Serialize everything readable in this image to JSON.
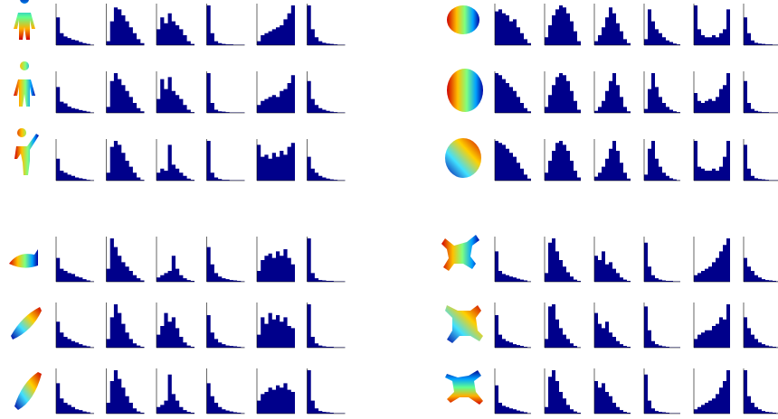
{
  "figure": {
    "ylim": [
      0,
      100
    ],
    "color": "#00008b",
    "groups": [
      {
        "rows": [
          [
            [
              70,
              30,
              22,
              18,
              14,
              12,
              8,
              5,
              3,
              1
            ],
            [
              10,
              60,
              95,
              90,
              75,
              60,
              45,
              30,
              15,
              5
            ],
            [
              40,
              70,
              55,
              80,
              60,
              50,
              40,
              25,
              10,
              3
            ],
            [
              100,
              30,
              10,
              5,
              3,
              2,
              2,
              1,
              1,
              1
            ],
            [
              10,
              25,
              30,
              35,
              40,
              45,
              50,
              65,
              80,
              100
            ],
            [
              100,
              40,
              20,
              10,
              6,
              4,
              3,
              2,
              1,
              1
            ]
          ],
          [
            [
              65,
              28,
              24,
              16,
              12,
              10,
              7,
              5,
              3,
              1
            ],
            [
              15,
              80,
              100,
              85,
              70,
              55,
              40,
              25,
              12,
              4
            ],
            [
              35,
              85,
              60,
              90,
              55,
              45,
              35,
              20,
              8,
              2
            ],
            [
              100,
              25,
              8,
              4,
              3,
              2,
              1,
              1,
              1,
              1
            ],
            [
              20,
              30,
              35,
              40,
              45,
              40,
              55,
              60,
              75,
              95
            ],
            [
              80,
              35,
              20,
              12,
              8,
              5,
              3,
              2,
              1,
              1
            ]
          ],
          [
            [
              55,
              25,
              20,
              15,
              12,
              8,
              6,
              4,
              2,
              1
            ],
            [
              20,
              85,
              100,
              90,
              70,
              50,
              35,
              20,
              8,
              2
            ],
            [
              20,
              30,
              25,
              90,
              40,
              30,
              20,
              12,
              5,
              2
            ],
            [
              100,
              20,
              8,
              4,
              2,
              2,
              1,
              1,
              1,
              1
            ],
            [
              90,
              60,
              65,
              55,
              70,
              60,
              75,
              65,
              85,
              95
            ],
            [
              60,
              30,
              20,
              12,
              8,
              5,
              3,
              2,
              1,
              1
            ]
          ]
        ]
      },
      {
        "rows": [
          [
            [
              85,
              90,
              80,
              75,
              60,
              65,
              45,
              30,
              15,
              5
            ],
            [
              20,
              50,
              75,
              90,
              100,
              95,
              80,
              60,
              35,
              10
            ],
            [
              10,
              25,
              45,
              70,
              95,
              80,
              55,
              35,
              15,
              5
            ],
            [
              15,
              90,
              60,
              40,
              30,
              20,
              12,
              8,
              4,
              2
            ],
            [
              100,
              40,
              25,
              20,
              20,
              25,
              20,
              30,
              40,
              90
            ],
            [
              70,
              30,
              12,
              6,
              4,
              3,
              2,
              2,
              1,
              1
            ]
          ],
          [
            [
              100,
              95,
              85,
              75,
              65,
              55,
              40,
              25,
              12,
              4
            ],
            [
              15,
              45,
              70,
              90,
              100,
              95,
              80,
              55,
              30,
              8
            ],
            [
              5,
              15,
              30,
              55,
              80,
              100,
              70,
              40,
              15,
              4
            ],
            [
              10,
              60,
              100,
              65,
              40,
              25,
              15,
              8,
              4,
              2
            ],
            [
              50,
              30,
              25,
              30,
              35,
              30,
              40,
              60,
              70,
              100
            ],
            [
              80,
              25,
              10,
              5,
              3,
              2,
              2,
              1,
              1,
              1
            ]
          ],
          [
            [
              100,
              95,
              90,
              80,
              70,
              60,
              45,
              30,
              15,
              5
            ],
            [
              20,
              50,
              75,
              95,
              100,
              90,
              75,
              50,
              25,
              8
            ],
            [
              10,
              20,
              35,
              55,
              80,
              100,
              75,
              45,
              20,
              5
            ],
            [
              15,
              80,
              100,
              55,
              35,
              20,
              12,
              6,
              3,
              1
            ],
            [
              100,
              35,
              30,
              25,
              25,
              30,
              25,
              35,
              60,
              100
            ],
            [
              90,
              30,
              12,
              6,
              4,
              3,
              2,
              1,
              1,
              1
            ]
          ]
        ]
      },
      {
        "rows": [
          [
            [
              55,
              30,
              25,
              20,
              18,
              12,
              10,
              6,
              3,
              1
            ],
            [
              30,
              100,
              80,
              60,
              45,
              35,
              25,
              15,
              8,
              3
            ],
            [
              10,
              15,
              20,
              25,
              60,
              30,
              15,
              8,
              4,
              2
            ],
            [
              80,
              40,
              20,
              12,
              8,
              6,
              4,
              3,
              2,
              1
            ],
            [
              25,
              50,
              60,
              65,
              55,
              70,
              60,
              75,
              55,
              40
            ],
            [
              100,
              20,
              8,
              4,
              3,
              2,
              2,
              1,
              1,
              1
            ]
          ],
          [
            [
              60,
              35,
              25,
              20,
              15,
              12,
              8,
              5,
              3,
              1
            ],
            [
              20,
              70,
              100,
              80,
              55,
              35,
              20,
              10,
              5,
              2
            ],
            [
              30,
              50,
              80,
              60,
              70,
              45,
              25,
              12,
              5,
              2
            ],
            [
              75,
              35,
              20,
              12,
              8,
              5,
              4,
              3,
              2,
              1
            ],
            [
              30,
              70,
              55,
              80,
              65,
              75,
              60,
              70,
              50,
              45
            ],
            [
              100,
              25,
              10,
              5,
              3,
              2,
              2,
              1,
              1,
              1
            ]
          ],
          [
            [
              70,
              35,
              25,
              20,
              15,
              10,
              8,
              5,
              3,
              1
            ],
            [
              25,
              75,
              100,
              80,
              60,
              40,
              25,
              12,
              5,
              2
            ],
            [
              15,
              20,
              30,
              90,
              45,
              30,
              15,
              8,
              4,
              2
            ],
            [
              70,
              40,
              25,
              15,
              10,
              7,
              5,
              3,
              2,
              1
            ],
            [
              30,
              45,
              50,
              60,
              55,
              65,
              60,
              70,
              55,
              50
            ],
            [
              100,
              30,
              12,
              6,
              4,
              3,
              2,
              1,
              1,
              1
            ]
          ]
        ]
      },
      {
        "rows": [
          [
            [
              70,
              25,
              18,
              15,
              12,
              10,
              7,
              5,
              3,
              1
            ],
            [
              20,
              90,
              100,
              70,
              50,
              35,
              22,
              12,
              5,
              2
            ],
            [
              60,
              50,
              70,
              40,
              45,
              30,
              20,
              10,
              5,
              2
            ],
            [
              90,
              35,
              15,
              8,
              5,
              3,
              2,
              2,
              1,
              1
            ],
            [
              15,
              20,
              25,
              30,
              35,
              45,
              55,
              70,
              85,
              100
            ],
            [
              55,
              35,
              25,
              15,
              10,
              6,
              4,
              3,
              2,
              1
            ]
          ],
          [
            [
              75,
              30,
              20,
              15,
              12,
              8,
              6,
              4,
              2,
              1
            ],
            [
              20,
              95,
              100,
              65,
              45,
              30,
              20,
              10,
              4,
              1
            ],
            [
              80,
              55,
              45,
              60,
              35,
              25,
              15,
              8,
              4,
              2
            ],
            [
              95,
              40,
              15,
              8,
              5,
              3,
              2,
              1,
              1,
              1
            ],
            [
              20,
              30,
              35,
              40,
              40,
              50,
              55,
              70,
              65,
              100
            ],
            [
              70,
              45,
              30,
              20,
              12,
              8,
              5,
              3,
              2,
              1
            ]
          ],
          [
            [
              65,
              25,
              18,
              15,
              12,
              10,
              7,
              5,
              3,
              1
            ],
            [
              15,
              85,
              100,
              75,
              50,
              35,
              20,
              10,
              5,
              2
            ],
            [
              75,
              60,
              70,
              50,
              40,
              25,
              15,
              8,
              4,
              2
            ],
            [
              90,
              30,
              12,
              6,
              4,
              3,
              2,
              1,
              1,
              1
            ],
            [
              10,
              15,
              20,
              25,
              30,
              35,
              45,
              60,
              75,
              100
            ],
            [
              100,
              40,
              25,
              15,
              10,
              6,
              4,
              3,
              2,
              1
            ]
          ]
        ]
      }
    ]
  }
}
